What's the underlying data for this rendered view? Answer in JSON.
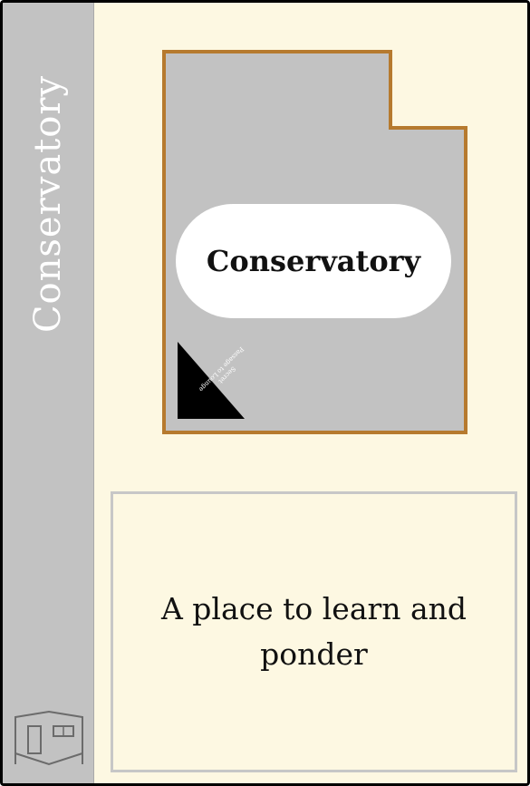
{
  "card": {
    "spine_title": "Conservatory",
    "room_name": "Conservatory",
    "secret_passage": {
      "line1": "Secret",
      "line2": "Passage to Lounge"
    },
    "description": "A place to learn and ponder",
    "spine_icon": "room-door-icon"
  },
  "colors": {
    "background": "#fdf8e2",
    "spine": "#c2c2c2",
    "room_floor": "#c2c2c2",
    "room_border": "#b67a2e",
    "description_border": "#c7c7c7"
  }
}
